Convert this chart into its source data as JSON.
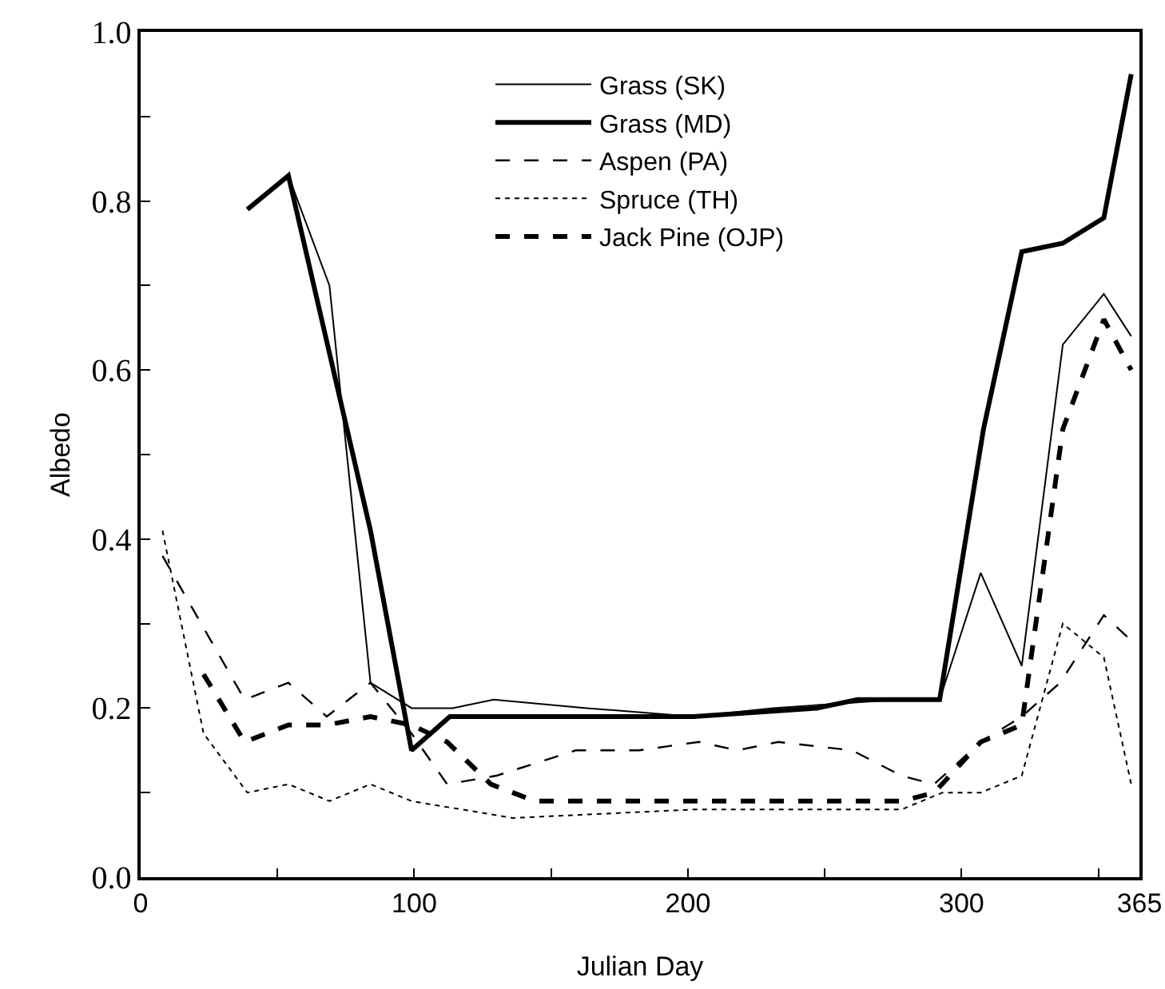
{
  "chart_data": {
    "type": "line",
    "xlabel": "Julian Day",
    "ylabel": "Albedo",
    "xlim": [
      0,
      365
    ],
    "xticks": [
      0,
      {
        "value": 50,
        "label": null
      },
      100,
      {
        "value": 150,
        "label": null
      },
      200,
      {
        "value": 250,
        "label": null
      },
      300,
      {
        "value": 350,
        "label": null
      },
      365
    ],
    "ylim": [
      0,
      1
    ],
    "yticks": [
      {
        "value": 0,
        "label": "0.0"
      },
      {
        "value": 0.1,
        "label": null
      },
      {
        "value": 0.2,
        "label": "0.2"
      },
      {
        "value": 0.3,
        "label": null
      },
      {
        "value": 0.4,
        "label": "0.4"
      },
      {
        "value": 0.5,
        "label": null
      },
      {
        "value": 0.6,
        "label": "0.6"
      },
      {
        "value": 0.7,
        "label": null
      },
      {
        "value": 0.8,
        "label": "0.8"
      },
      {
        "value": 0.9,
        "label": null
      },
      {
        "value": 1.0,
        "label": "1.0"
      }
    ],
    "grid": false,
    "legend": "top",
    "marker": "none",
    "series": [
      {
        "name": "Grass (SK)",
        "color": "#000000",
        "line_style": "solid",
        "x": [
          54,
          69,
          84,
          99,
          114,
          129,
          163,
          202,
          231,
          277,
          292,
          307,
          322,
          337,
          352,
          362
        ],
        "values": [
          0.83,
          0.7,
          0.23,
          0.2,
          0.2,
          0.21,
          0.2,
          0.19,
          0.2,
          0.21,
          0.21,
          0.36,
          0.25,
          0.63,
          0.69,
          0.64
        ]
      },
      {
        "name": "Grass (MD)",
        "color": "#000000",
        "line_style": "solid",
        "x": [
          39,
          54,
          84,
          99,
          113,
          124,
          163,
          202,
          247,
          262,
          292,
          308,
          322,
          337,
          352,
          362
        ],
        "values": [
          0.79,
          0.83,
          0.41,
          0.15,
          0.19,
          0.19,
          0.19,
          0.19,
          0.2,
          0.21,
          0.21,
          0.53,
          0.74,
          0.75,
          0.78,
          0.95
        ]
      },
      {
        "name": "Aspen (PA)",
        "color": "#000000",
        "line_style": "dashed",
        "x": [
          8,
          38,
          54,
          68,
          84,
          99,
          112,
          130,
          159,
          182,
          204,
          218,
          233,
          260,
          278,
          290,
          307,
          322,
          336,
          352,
          362
        ],
        "values": [
          0.38,
          0.21,
          0.23,
          0.19,
          0.23,
          0.17,
          0.11,
          0.12,
          0.15,
          0.15,
          0.16,
          0.15,
          0.16,
          0.15,
          0.12,
          0.11,
          0.16,
          0.19,
          0.23,
          0.31,
          0.28
        ]
      },
      {
        "name": "Spruce (TH)",
        "color": "#000000",
        "line_style": "dotted",
        "x": [
          8,
          23,
          39,
          54,
          69,
          84,
          99,
          136,
          202,
          278,
          293,
          307,
          322,
          337,
          352,
          362
        ],
        "values": [
          0.41,
          0.17,
          0.1,
          0.11,
          0.09,
          0.11,
          0.09,
          0.07,
          0.08,
          0.08,
          0.1,
          0.1,
          0.12,
          0.3,
          0.26,
          0.11
        ]
      },
      {
        "name": "Jack Pine (OJP)",
        "color": "#000000",
        "line_style": "dashed",
        "x": [
          23,
          38,
          54,
          68,
          84,
          99,
          112,
          128,
          144,
          182,
          205,
          222,
          244,
          278,
          290,
          307,
          322,
          337,
          352,
          362
        ],
        "values": [
          0.24,
          0.16,
          0.18,
          0.18,
          0.19,
          0.18,
          0.16,
          0.11,
          0.09,
          0.09,
          0.09,
          0.09,
          0.09,
          0.09,
          0.1,
          0.16,
          0.18,
          0.53,
          0.66,
          0.6
        ]
      }
    ]
  }
}
